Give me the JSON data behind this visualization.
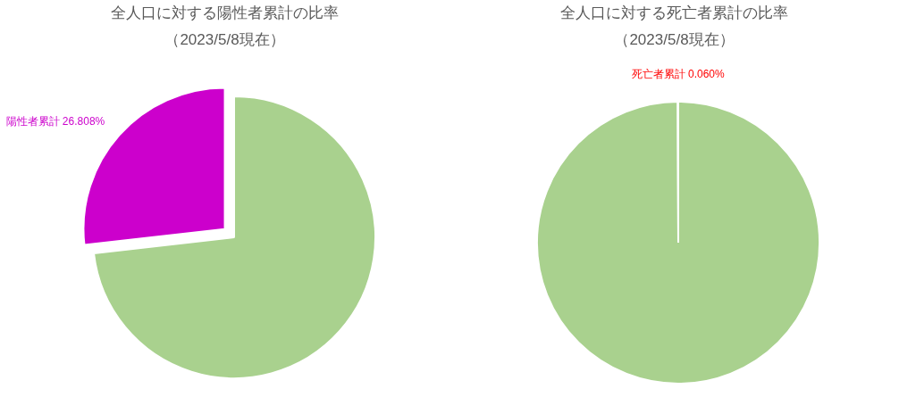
{
  "chart_data": [
    {
      "type": "pie",
      "title": "全人口に対する陽性者累計の比率",
      "subtitle": "（2023/5/8現在）",
      "categories": [
        null,
        "陽性者累計"
      ],
      "values": [
        73.192,
        26.808
      ],
      "colors": [
        "#a9d18e",
        "#cc00cc"
      ],
      "value_labels": [
        null,
        "26.808%"
      ]
    },
    {
      "type": "pie",
      "title": "全人口に対する死亡者累計の比率",
      "subtitle": "（2023/5/8現在）",
      "categories": [
        null,
        "死亡者累計"
      ],
      "values": [
        99.94,
        0.06
      ],
      "colors": [
        "#a9d18e",
        "#ff0000"
      ],
      "value_labels": [
        null,
        "0.060%"
      ]
    }
  ]
}
